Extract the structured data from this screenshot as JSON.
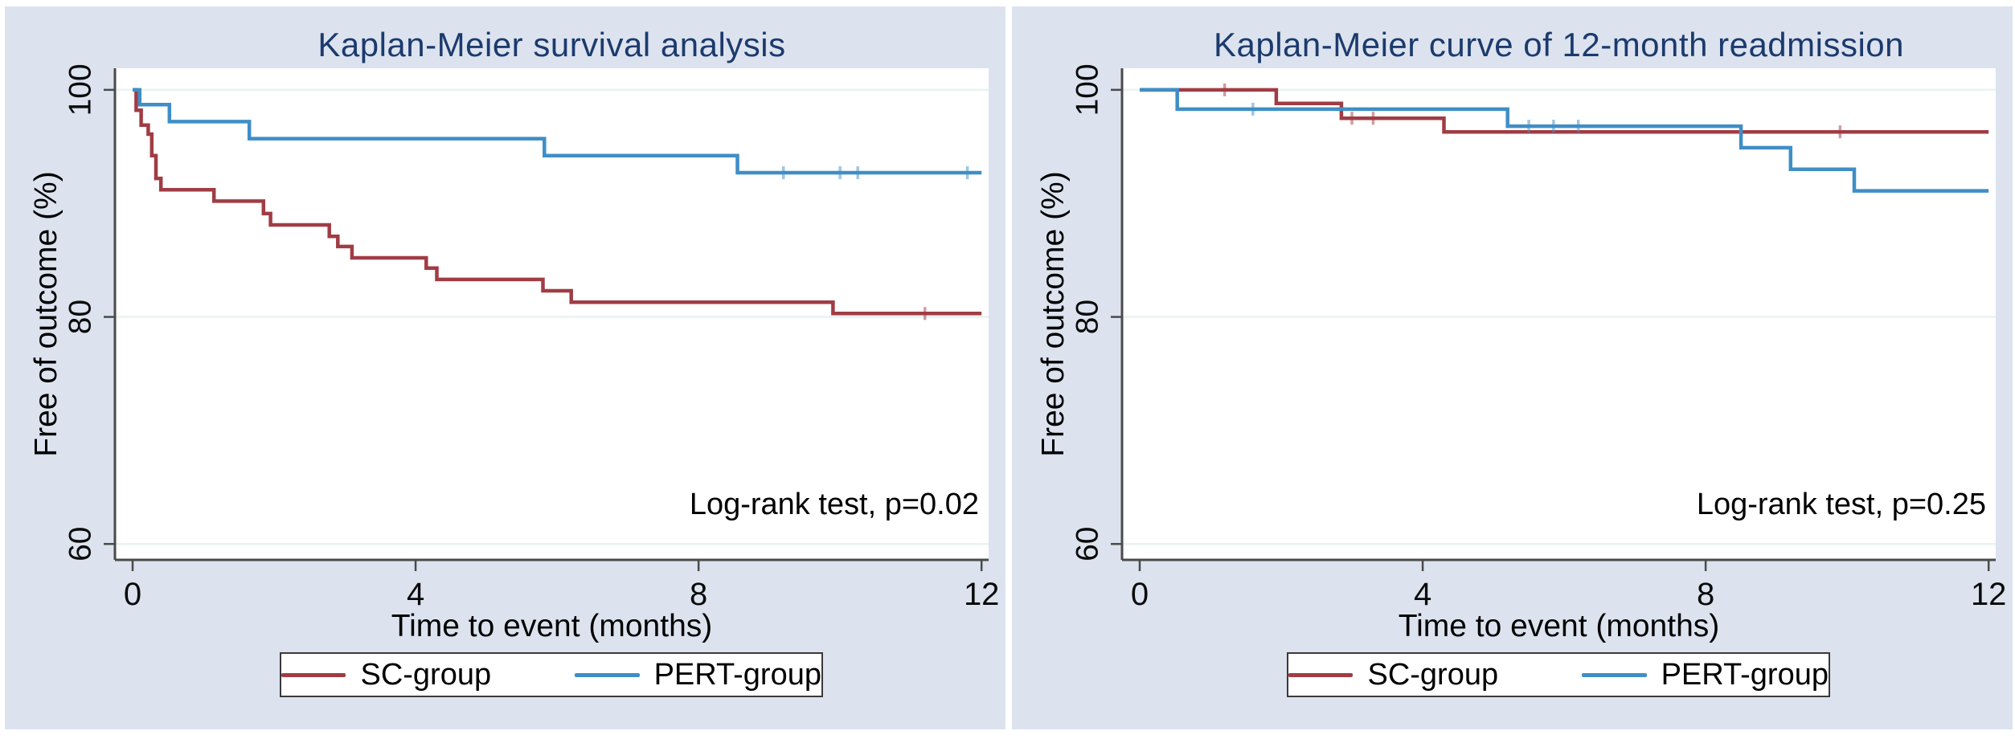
{
  "figure": {
    "background": "#ffffff",
    "panel_background": "#dce3ef",
    "plot_background": "#ffffff"
  },
  "colors": {
    "sc": "#a03c44",
    "pert": "#3f8ec6",
    "title": "#1c3a6d",
    "axis": "#4a4a4a",
    "grid": "#e9f1f1",
    "text": "#000000",
    "legend_border": "#3a3a3a"
  },
  "chart_data": [
    {
      "type": "line",
      "subtype": "kaplan-meier-step",
      "title": "Kaplan-Meier survival analysis",
      "xlabel": "Time to event (months)",
      "ylabel": "Free of outcome (%)",
      "annotation": "Log-rank test, p=0.02",
      "xticks": [
        0,
        4,
        8,
        12
      ],
      "yticks": [
        60,
        80,
        100
      ],
      "xlim": [
        -0.25,
        12.1
      ],
      "ylim": [
        58.6,
        101.9
      ],
      "grid": "horizontal-at-yticks",
      "legend_position": "below",
      "series": [
        {
          "name": "SC-group",
          "color_key": "sc",
          "points": [
            [
              0,
              100
            ],
            [
              0.05,
              98.2
            ],
            [
              0.12,
              96.9
            ],
            [
              0.22,
              96.1
            ],
            [
              0.27,
              94.2
            ],
            [
              0.33,
              92.2
            ],
            [
              0.4,
              91.2
            ],
            [
              1.15,
              90.2
            ],
            [
              1.85,
              89.1
            ],
            [
              1.95,
              88.1
            ],
            [
              2.78,
              87.1
            ],
            [
              2.9,
              86.2
            ],
            [
              3.1,
              85.2
            ],
            [
              4.15,
              84.3
            ],
            [
              4.3,
              83.3
            ],
            [
              5.8,
              82.3
            ],
            [
              6.2,
              81.3
            ],
            [
              9.9,
              80.3
            ],
            [
              12,
              80.3
            ]
          ],
          "censors": [
            [
              11.2,
              80.3
            ]
          ]
        },
        {
          "name": "PERT-group",
          "color_key": "pert",
          "points": [
            [
              0,
              100
            ],
            [
              0.1,
              98.7
            ],
            [
              0.52,
              97.2
            ],
            [
              1.65,
              95.7
            ],
            [
              5.82,
              94.2
            ],
            [
              8.55,
              92.7
            ],
            [
              12,
              92.7
            ]
          ],
          "censors": [
            [
              9.2,
              92.7
            ],
            [
              10.0,
              92.7
            ],
            [
              10.25,
              92.7
            ],
            [
              11.8,
              92.7
            ]
          ]
        }
      ]
    },
    {
      "type": "line",
      "subtype": "kaplan-meier-step",
      "title": "Kaplan-Meier curve of 12-month readmission",
      "xlabel": "Time to event (months)",
      "ylabel": "Free of outcome (%)",
      "annotation": "Log-rank test, p=0.25",
      "xticks": [
        0,
        4,
        8,
        12
      ],
      "yticks": [
        60,
        80,
        100
      ],
      "xlim": [
        -0.25,
        12.1
      ],
      "ylim": [
        58.6,
        101.9
      ],
      "grid": "horizontal-at-yticks",
      "legend_position": "below",
      "series": [
        {
          "name": "SC-group",
          "color_key": "sc",
          "points": [
            [
              0,
              100
            ],
            [
              1.93,
              98.8
            ],
            [
              2.85,
              97.5
            ],
            [
              4.3,
              96.3
            ],
            [
              12,
              96.3
            ]
          ],
          "censors": [
            [
              1.2,
              100
            ],
            [
              3.0,
              97.5
            ],
            [
              3.3,
              97.5
            ],
            [
              9.9,
              96.3
            ]
          ]
        },
        {
          "name": "PERT-group",
          "color_key": "pert",
          "points": [
            [
              0,
              100
            ],
            [
              0.53,
              98.3
            ],
            [
              5.2,
              96.8
            ],
            [
              8.5,
              94.9
            ],
            [
              9.2,
              93.0
            ],
            [
              10.1,
              91.1
            ],
            [
              12,
              91.1
            ]
          ],
          "censors": [
            [
              1.6,
              98.3
            ],
            [
              5.5,
              96.8
            ],
            [
              5.85,
              96.8
            ],
            [
              6.2,
              96.8
            ]
          ]
        }
      ]
    }
  ]
}
